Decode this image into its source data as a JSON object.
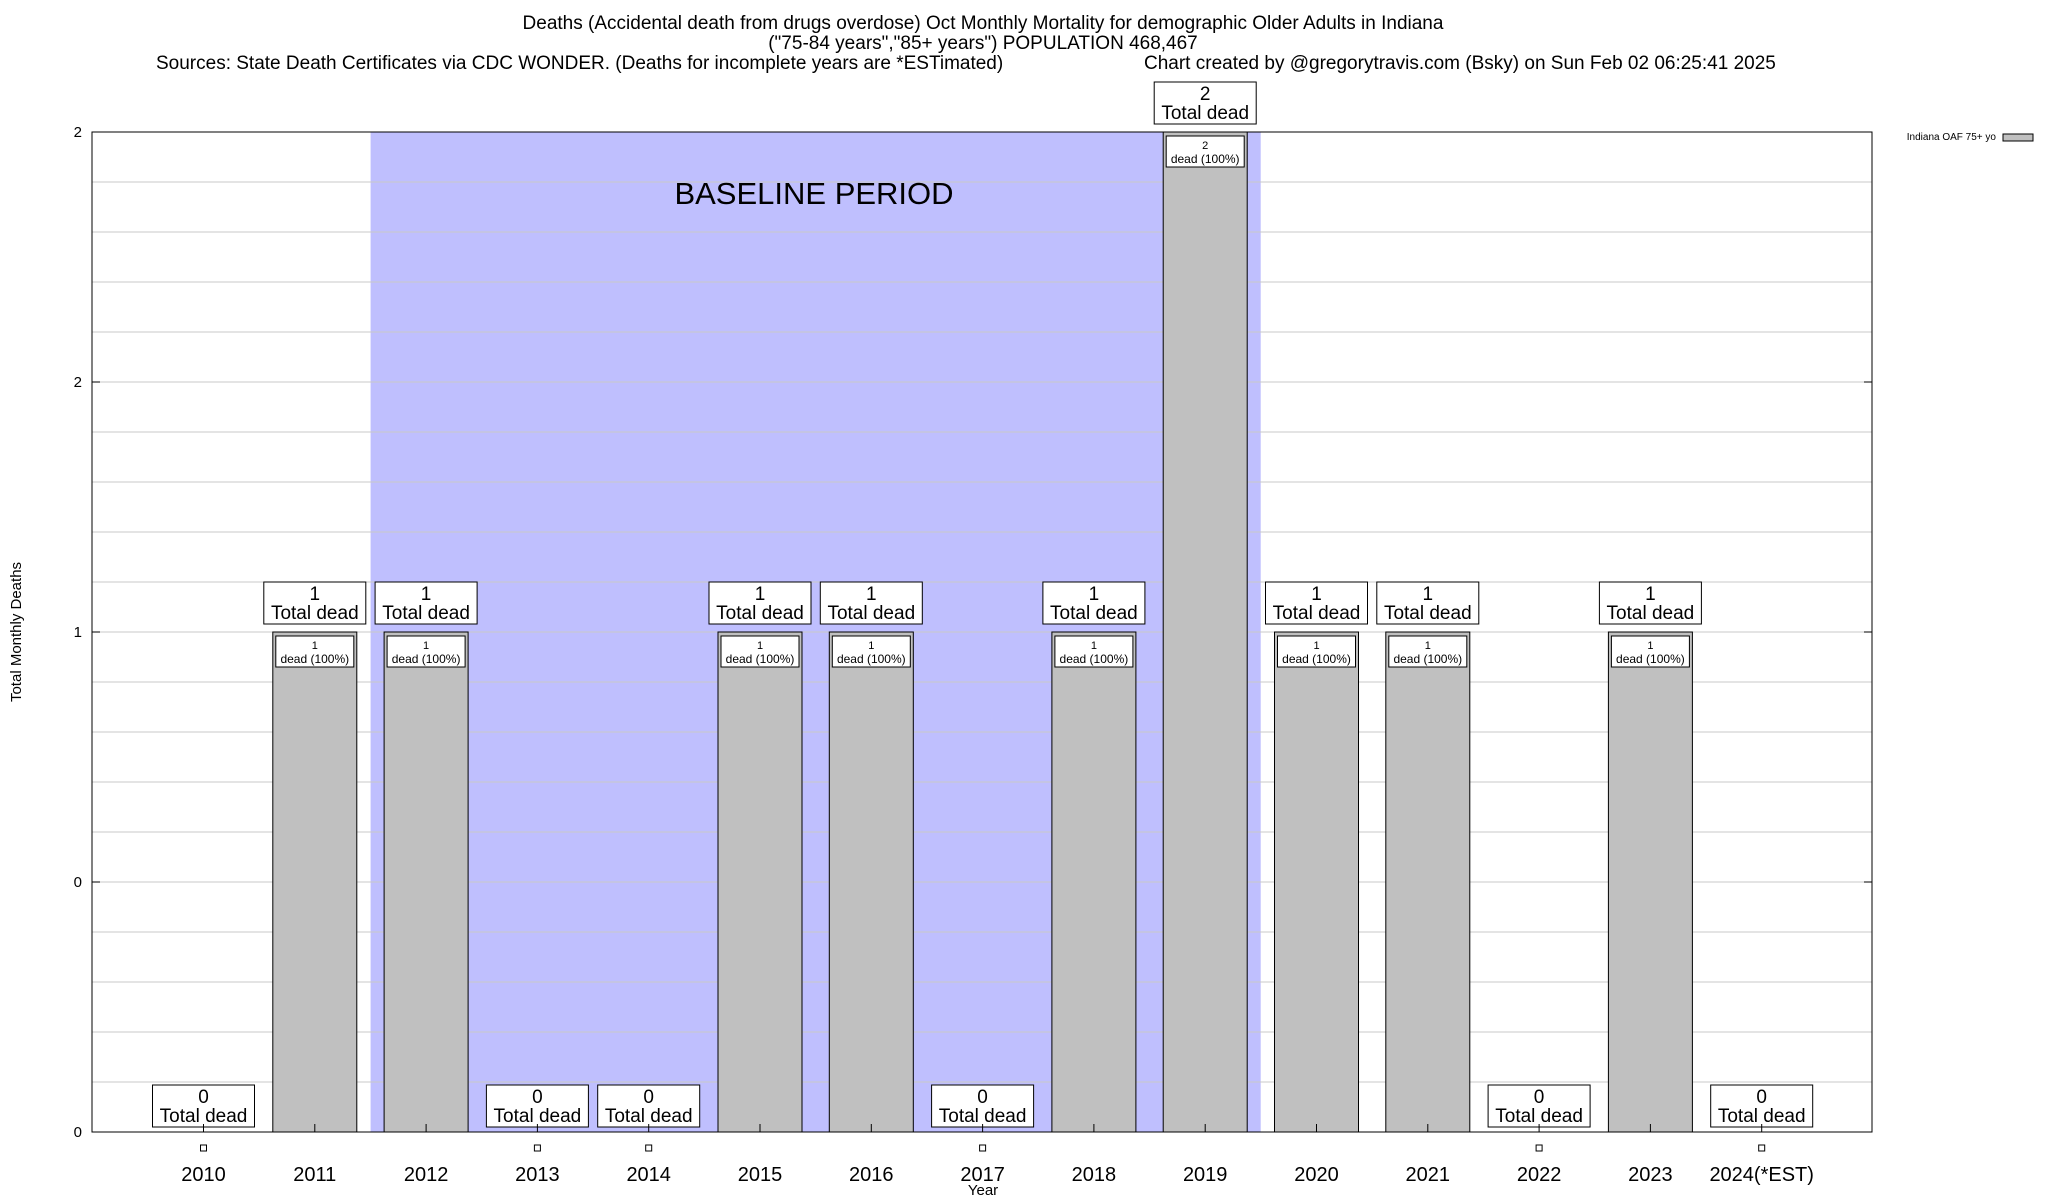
{
  "header": {
    "title_line1": "Deaths (Accidental death from drugs overdose) Oct Monthly Mortality for demographic Older Adults in Indiana",
    "title_line2": "(\"75-84 years\",\"85+ years\") POPULATION 468,467",
    "sources": "Sources: State Death Certificates via CDC WONDER. (Deaths for incomplete years are *ESTimated)",
    "credit": "Chart created by @gregorytravis.com (Bsky) on Sun Feb 02 06:25:41 2025"
  },
  "chart_data": {
    "type": "bar",
    "title": "Deaths (Accidental death from drugs overdose) Oct Monthly Mortality for demographic Older Adults in Indiana",
    "xlabel": "Year",
    "ylabel": "Total Monthly Deaths",
    "categories": [
      "2010",
      "2011",
      "2012",
      "2013",
      "2014",
      "2015",
      "2016",
      "2017",
      "2018",
      "2019",
      "2020",
      "2021",
      "2022",
      "2023",
      "2024(*EST)"
    ],
    "series": [
      {
        "name": "Indiana OAF 75+ yo",
        "values": [
          0,
          1,
          1,
          0,
          0,
          1,
          1,
          0,
          1,
          2,
          1,
          1,
          0,
          1,
          0
        ],
        "color": "#c0c0c0"
      }
    ],
    "ylim": [
      0,
      2
    ],
    "y_tick_labels": [
      "0",
      "0",
      "1",
      "2",
      "2"
    ],
    "y_tick_values": [
      0,
      0.5,
      1,
      1.5,
      2
    ],
    "total_label_suffix": "Total dead",
    "inner_label_suffix": "dead (100%)",
    "annotation": "BASELINE PERIOD",
    "baseline_period": {
      "start": "2012",
      "end": "2019",
      "color": "#bfbffe"
    },
    "legend_position": "top-right",
    "grid": true
  }
}
